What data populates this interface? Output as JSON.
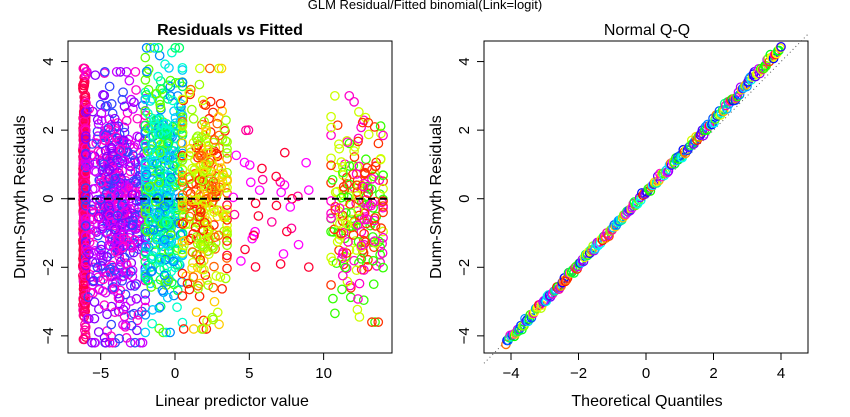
{
  "page_title": "GLM Residual/Fitted binomial(Link=logit)",
  "chart_data": [
    {
      "type": "scatter",
      "title": "Residuals vs Fitted",
      "xlabel": "Linear predictor value",
      "ylabel": "Dunn-Smyth Residuals",
      "xlim": [
        -7.2,
        14.6
      ],
      "ylim": [
        -4.5,
        4.6
      ],
      "xticks": [
        -5,
        0,
        5,
        10
      ],
      "yticks": [
        -4,
        -2,
        0,
        2,
        4
      ],
      "reference_line": {
        "y": 0,
        "style": "dashed"
      },
      "marker": "open circle",
      "color_scheme": "rainbow",
      "clusters": [
        {
          "x_range": [
            -6.2,
            -6.0
          ],
          "y_range": [
            -4.1,
            3.8
          ],
          "colors": [
            "#ff0066",
            "#ff0044",
            "#ff00aa"
          ]
        },
        {
          "x_range": [
            -6.0,
            -2.0
          ],
          "y_range": [
            -4.2,
            3.7
          ],
          "colors": [
            "#ff00cc",
            "#cc00ff",
            "#8800ff",
            "#3344ff"
          ]
        },
        {
          "x_range": [
            -2.0,
            0.5
          ],
          "y_range": [
            -3.9,
            4.4
          ],
          "colors": [
            "#0088ff",
            "#00ccff",
            "#00ffcc",
            "#00ff66",
            "#66ff00"
          ]
        },
        {
          "x_range": [
            0.5,
            3.5
          ],
          "y_range": [
            -3.8,
            3.8
          ],
          "colors": [
            "#99ff00",
            "#ccff00",
            "#ffcc00",
            "#ff6600",
            "#ff2200"
          ]
        },
        {
          "x_range": [
            3.5,
            9.0
          ],
          "y_range": [
            -2.2,
            2.0
          ],
          "colors": [
            "#ff0033",
            "#ff0099",
            "#ff00ff"
          ]
        },
        {
          "x_range": [
            10.5,
            14.0
          ],
          "y_range": [
            -3.6,
            3.0
          ],
          "colors": [
            "#33ff00",
            "#ccff00",
            "#ff3300",
            "#ff00cc"
          ]
        }
      ]
    },
    {
      "type": "scatter",
      "title": "Normal Q-Q",
      "xlabel": "Theoretical Quantiles",
      "ylabel": "Dunn-Smyth Residuals",
      "xlim": [
        -4.8,
        4.8
      ],
      "ylim": [
        -4.5,
        4.6
      ],
      "xticks": [
        -4,
        -2,
        0,
        2,
        4
      ],
      "yticks": [
        -4,
        -2,
        0,
        2,
        4
      ],
      "reference_line": {
        "slope": 1,
        "intercept": 0,
        "style": "dotted"
      },
      "points_x_range": [
        -4.15,
        4.0
      ],
      "points_y_range": [
        -4.2,
        4.4
      ],
      "marker": "open circle",
      "color_scheme": "rainbow"
    }
  ]
}
